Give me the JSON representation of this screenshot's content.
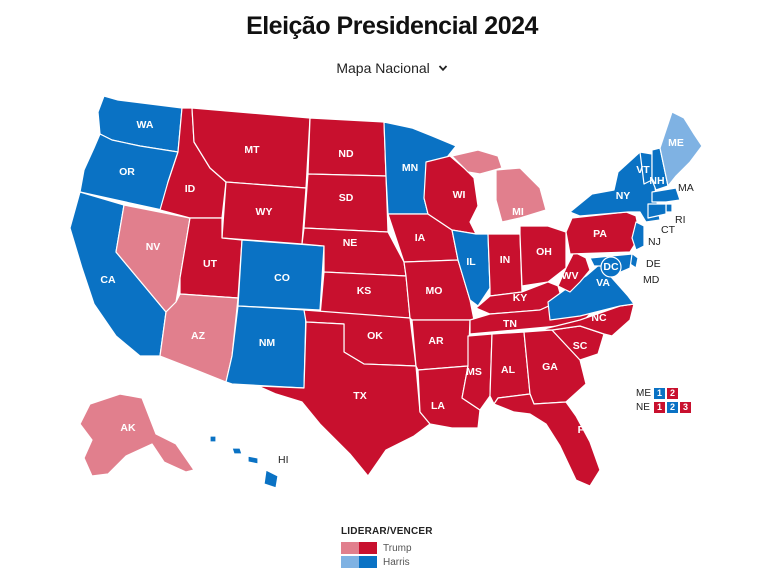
{
  "header": {
    "title": "Eleição Presidencial 2024",
    "map_selector": "Mapa Nacional"
  },
  "colors": {
    "trump_win": "#c8102e",
    "trump_lead": "#e17f8d",
    "harris_win": "#0a72c4",
    "harris_lead": "#7fb2e3"
  },
  "states": [
    {
      "abbr": "WA",
      "result": "harris_win"
    },
    {
      "abbr": "OR",
      "result": "harris_win"
    },
    {
      "abbr": "CA",
      "result": "harris_win"
    },
    {
      "abbr": "NV",
      "result": "trump_lead"
    },
    {
      "abbr": "ID",
      "result": "trump_win"
    },
    {
      "abbr": "MT",
      "result": "trump_win"
    },
    {
      "abbr": "WY",
      "result": "trump_win"
    },
    {
      "abbr": "UT",
      "result": "trump_win"
    },
    {
      "abbr": "AZ",
      "result": "trump_lead"
    },
    {
      "abbr": "CO",
      "result": "harris_win"
    },
    {
      "abbr": "NM",
      "result": "harris_win"
    },
    {
      "abbr": "ND",
      "result": "trump_win"
    },
    {
      "abbr": "SD",
      "result": "trump_win"
    },
    {
      "abbr": "NE",
      "result": "trump_win"
    },
    {
      "abbr": "KS",
      "result": "trump_win"
    },
    {
      "abbr": "OK",
      "result": "trump_win"
    },
    {
      "abbr": "TX",
      "result": "trump_win"
    },
    {
      "abbr": "MN",
      "result": "harris_win"
    },
    {
      "abbr": "IA",
      "result": "trump_win"
    },
    {
      "abbr": "MO",
      "result": "trump_win"
    },
    {
      "abbr": "AR",
      "result": "trump_win"
    },
    {
      "abbr": "LA",
      "result": "trump_win"
    },
    {
      "abbr": "WI",
      "result": "trump_win"
    },
    {
      "abbr": "IL",
      "result": "harris_win"
    },
    {
      "abbr": "MI",
      "result": "trump_lead"
    },
    {
      "abbr": "IN",
      "result": "trump_win"
    },
    {
      "abbr": "OH",
      "result": "trump_win"
    },
    {
      "abbr": "KY",
      "result": "trump_win"
    },
    {
      "abbr": "TN",
      "result": "trump_win"
    },
    {
      "abbr": "MS",
      "result": "trump_win"
    },
    {
      "abbr": "AL",
      "result": "trump_win"
    },
    {
      "abbr": "GA",
      "result": "trump_win"
    },
    {
      "abbr": "FL",
      "result": "trump_win"
    },
    {
      "abbr": "SC",
      "result": "trump_win"
    },
    {
      "abbr": "NC",
      "result": "trump_win"
    },
    {
      "abbr": "VA",
      "result": "harris_win"
    },
    {
      "abbr": "WV",
      "result": "trump_win"
    },
    {
      "abbr": "PA",
      "result": "trump_win"
    },
    {
      "abbr": "NY",
      "result": "harris_win"
    },
    {
      "abbr": "VT",
      "result": "harris_win"
    },
    {
      "abbr": "NH",
      "result": "harris_win"
    },
    {
      "abbr": "ME",
      "result": "harris_lead"
    },
    {
      "abbr": "MA",
      "result": "harris_win"
    },
    {
      "abbr": "RI",
      "result": "harris_win"
    },
    {
      "abbr": "CT",
      "result": "harris_win"
    },
    {
      "abbr": "NJ",
      "result": "harris_win"
    },
    {
      "abbr": "DE",
      "result": "harris_win"
    },
    {
      "abbr": "MD",
      "result": "harris_win"
    },
    {
      "abbr": "DC",
      "result": "harris_win"
    },
    {
      "abbr": "AK",
      "result": "trump_lead"
    },
    {
      "abbr": "HI",
      "result": "harris_win"
    }
  ],
  "district_splits": [
    {
      "state": "ME",
      "districts": [
        {
          "n": "1",
          "result": "harris_win"
        },
        {
          "n": "2",
          "result": "trump_win"
        }
      ]
    },
    {
      "state": "NE",
      "districts": [
        {
          "n": "1",
          "result": "trump_win"
        },
        {
          "n": "2",
          "result": "harris_win"
        },
        {
          "n": "3",
          "result": "trump_win"
        }
      ]
    }
  ],
  "legend": {
    "title": "LIDERAR/VENCER",
    "items": [
      {
        "label": "Trump",
        "lead": "trump_lead",
        "win": "trump_win"
      },
      {
        "label": "Harris",
        "lead": "harris_lead",
        "win": "harris_win"
      }
    ]
  }
}
